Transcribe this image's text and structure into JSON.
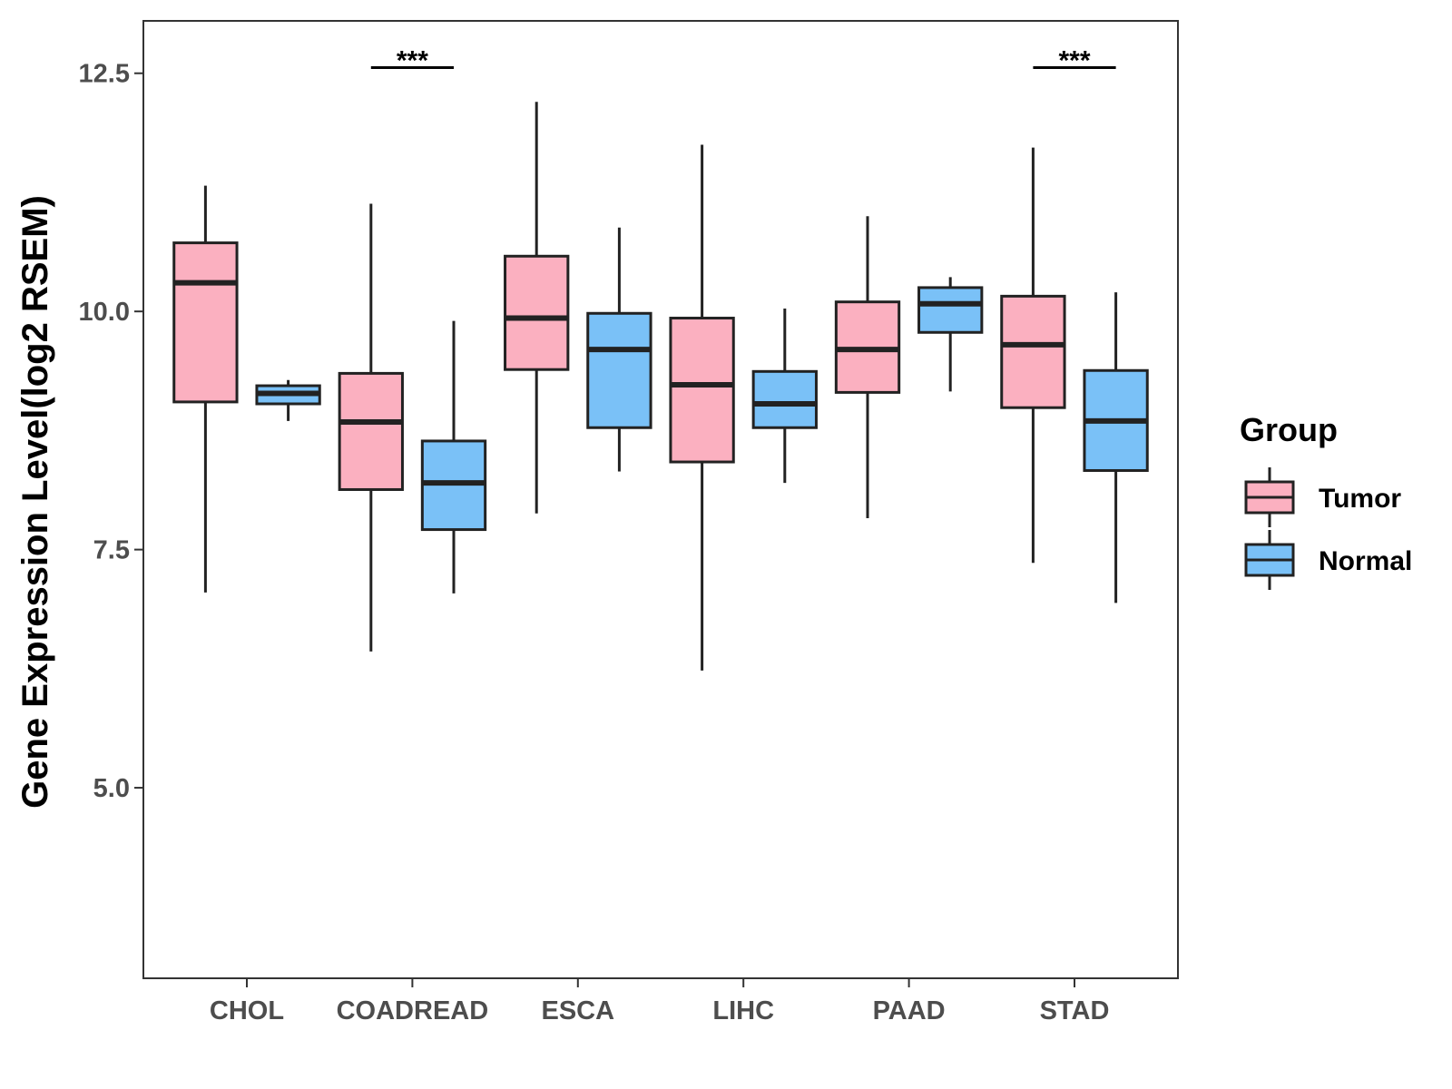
{
  "chart_data": {
    "type": "boxplot",
    "title": "",
    "xlabel": "",
    "ylabel": "Gene Expression Level(log2 RSEM)",
    "ylim": [
      3.0,
      13.05
    ],
    "yticks": [
      5.0,
      7.5,
      10.0,
      12.5
    ],
    "ytick_labels": [
      "5.0",
      "7.5",
      "10.0",
      "12.5"
    ],
    "grid": false,
    "categories": [
      "CHOL",
      "COADREAD",
      "ESCA",
      "LIHC",
      "PAAD",
      "STAD"
    ],
    "legend": {
      "title": "Group",
      "position": "right",
      "entries": [
        "Tumor",
        "Normal"
      ]
    },
    "series": [
      {
        "name": "Tumor",
        "color": "#fbb0c0",
        "boxes": [
          {
            "whisker_low": 7.05,
            "q1": 9.05,
            "median": 10.3,
            "q3": 10.72,
            "whisker_high": 11.32
          },
          {
            "whisker_low": 6.43,
            "q1": 8.13,
            "median": 8.84,
            "q3": 9.35,
            "whisker_high": 11.13
          },
          {
            "whisker_low": 7.88,
            "q1": 9.39,
            "median": 9.93,
            "q3": 10.58,
            "whisker_high": 12.2
          },
          {
            "whisker_low": 6.23,
            "q1": 8.42,
            "median": 9.23,
            "q3": 9.93,
            "whisker_high": 11.75
          },
          {
            "whisker_low": 7.83,
            "q1": 9.15,
            "median": 9.6,
            "q3": 10.1,
            "whisker_high": 11.0
          },
          {
            "whisker_low": 7.36,
            "q1": 8.99,
            "median": 9.65,
            "q3": 10.16,
            "whisker_high": 11.72
          }
        ]
      },
      {
        "name": "Normal",
        "color": "#7ac1f7",
        "boxes": [
          {
            "whisker_low": 8.85,
            "q1": 9.03,
            "median": 9.14,
            "q3": 9.22,
            "whisker_high": 9.28
          },
          {
            "whisker_low": 7.04,
            "q1": 7.71,
            "median": 8.2,
            "q3": 8.64,
            "whisker_high": 9.9
          },
          {
            "whisker_low": 8.32,
            "q1": 8.78,
            "median": 9.6,
            "q3": 9.98,
            "whisker_high": 10.88
          },
          {
            "whisker_low": 8.2,
            "q1": 8.78,
            "median": 9.03,
            "q3": 9.37,
            "whisker_high": 10.03
          },
          {
            "whisker_low": 9.16,
            "q1": 9.78,
            "median": 10.08,
            "q3": 10.25,
            "whisker_high": 10.36
          },
          {
            "whisker_low": 6.94,
            "q1": 8.33,
            "median": 8.85,
            "q3": 9.38,
            "whisker_high": 10.2
          }
        ]
      }
    ],
    "annotations": [
      {
        "category": "COADREAD",
        "text": "***",
        "y": 12.56
      },
      {
        "category": "STAD",
        "text": "***",
        "y": 12.56
      }
    ]
  }
}
